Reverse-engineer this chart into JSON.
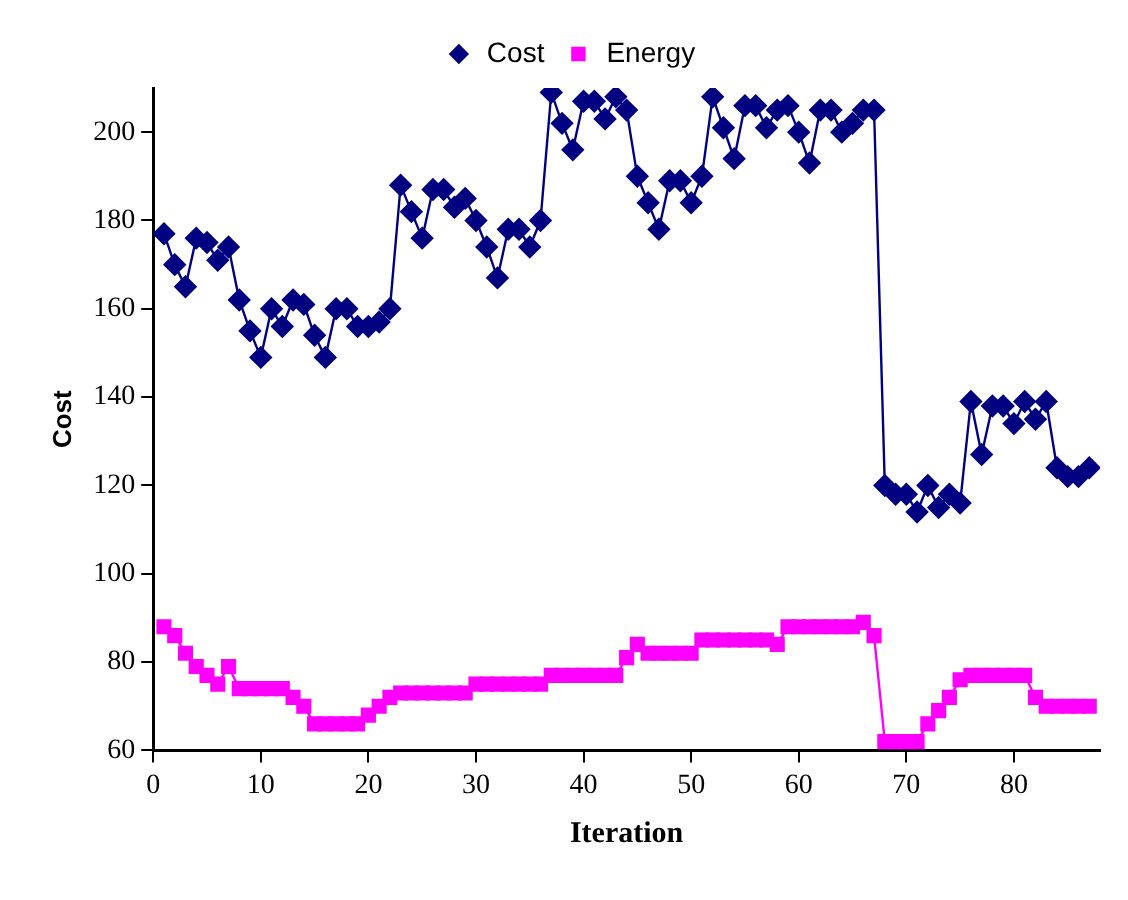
{
  "chart_data": {
    "type": "line",
    "xlabel": "Iteration",
    "ylabel": "Cost",
    "x": [
      1,
      2,
      3,
      4,
      5,
      6,
      7,
      8,
      9,
      10,
      11,
      12,
      13,
      14,
      15,
      16,
      17,
      18,
      19,
      20,
      21,
      22,
      23,
      24,
      25,
      26,
      27,
      28,
      29,
      30,
      31,
      32,
      33,
      34,
      35,
      36,
      37,
      38,
      39,
      40,
      41,
      42,
      43,
      44,
      45,
      46,
      47,
      48,
      49,
      50,
      51,
      52,
      53,
      54,
      55,
      56,
      57,
      58,
      59,
      60,
      61,
      62,
      63,
      64,
      65,
      66,
      67,
      68,
      69,
      70,
      71,
      72,
      73,
      74,
      75,
      76,
      77,
      78,
      79,
      80,
      81,
      82,
      83,
      84,
      85,
      86,
      87
    ],
    "series": [
      {
        "name": "Cost",
        "color": "#000080",
        "marker": "diamond",
        "values": [
          177,
          170,
          165,
          176,
          175,
          171,
          174,
          162,
          155,
          149,
          160,
          156,
          162,
          161,
          154,
          149,
          160,
          160,
          156,
          156,
          157,
          160,
          188,
          182,
          176,
          187,
          187,
          183,
          185,
          180,
          174,
          167,
          178,
          178,
          174,
          180,
          209,
          202,
          196,
          207,
          207,
          203,
          208,
          205,
          190,
          184,
          178,
          189,
          189,
          184,
          190,
          208,
          201,
          194,
          206,
          206,
          201,
          205,
          206,
          200,
          193,
          205,
          205,
          200,
          202,
          205,
          205,
          120,
          118,
          118,
          114,
          120,
          115,
          118,
          116,
          139,
          127,
          138,
          138,
          134,
          139,
          135,
          139,
          124,
          122,
          122,
          124
        ]
      },
      {
        "name": "Energy",
        "color": "#ff00ff",
        "marker": "square",
        "values": [
          88,
          86,
          82,
          79,
          77,
          75,
          79,
          74,
          74,
          74,
          74,
          74,
          72,
          70,
          66,
          66,
          66,
          66,
          66,
          68,
          70,
          72,
          73,
          73,
          73,
          73,
          73,
          73,
          73,
          75,
          75,
          75,
          75,
          75,
          75,
          75,
          77,
          77,
          77,
          77,
          77,
          77,
          77,
          81,
          84,
          82,
          82,
          82,
          82,
          82,
          85,
          85,
          85,
          85,
          85,
          85,
          85,
          84,
          88,
          88,
          88,
          88,
          88,
          88,
          88,
          89,
          86,
          62,
          62,
          62,
          62,
          66,
          69,
          72,
          76,
          77,
          77,
          77,
          77,
          77,
          77,
          72,
          70,
          70,
          70,
          70,
          70
        ]
      }
    ],
    "xlim": [
      0,
      88
    ],
    "xticks": [
      0,
      10,
      20,
      30,
      40,
      50,
      60,
      70,
      80
    ],
    "ylim": [
      60,
      210
    ],
    "yticks": [
      60,
      80,
      100,
      120,
      140,
      160,
      180,
      200
    ],
    "grid": false,
    "legend": "top",
    "line_style": "solid"
  }
}
